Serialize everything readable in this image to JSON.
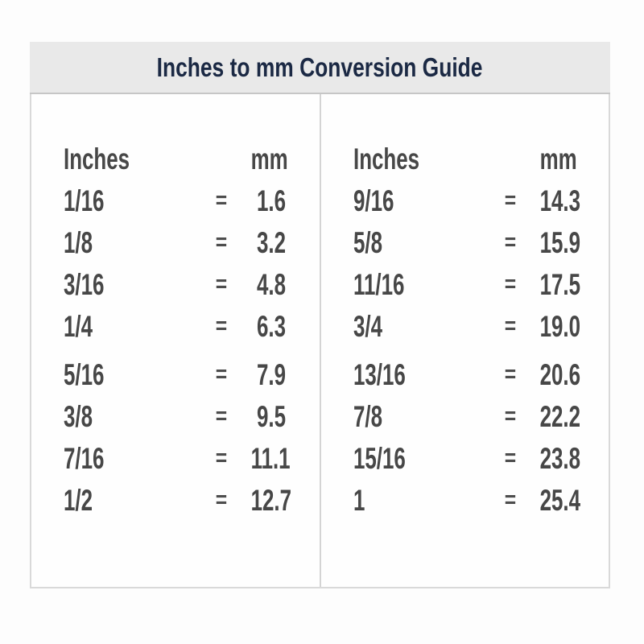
{
  "header": {
    "title": "Inches to mm Conversion Guide"
  },
  "columns": [
    {
      "inches_label": "Inches",
      "mm_label": "mm",
      "rows": [
        {
          "inches": "1/16",
          "eq": "=",
          "mm": "1.6"
        },
        {
          "inches": "1/8",
          "eq": "=",
          "mm": "3.2"
        },
        {
          "inches": "3/16",
          "eq": "=",
          "mm": "4.8"
        },
        {
          "inches": "1/4",
          "eq": "=",
          "mm": "6.3"
        },
        {
          "inches": "5/16",
          "eq": "=",
          "mm": "7.9"
        },
        {
          "inches": "3/8",
          "eq": "=",
          "mm": "9.5"
        },
        {
          "inches": "7/16",
          "eq": "=",
          "mm": "11.1"
        },
        {
          "inches": "1/2",
          "eq": "=",
          "mm": "12.7"
        }
      ]
    },
    {
      "inches_label": "Inches",
      "mm_label": "mm",
      "rows": [
        {
          "inches": "9/16",
          "eq": "=",
          "mm": "14.3"
        },
        {
          "inches": "5/8",
          "eq": "=",
          "mm": "15.9"
        },
        {
          "inches": "11/16",
          "eq": "=",
          "mm": "17.5"
        },
        {
          "inches": "3/4",
          "eq": "=",
          "mm": "19.0"
        },
        {
          "inches": "13/16",
          "eq": "=",
          "mm": "20.6"
        },
        {
          "inches": "7/8",
          "eq": "=",
          "mm": "22.2"
        },
        {
          "inches": "15/16",
          "eq": "=",
          "mm": "23.8"
        },
        {
          "inches": "1",
          "eq": "=",
          "mm": "25.4"
        }
      ]
    }
  ],
  "colors": {
    "header_bg": "#e9e9e9",
    "header_border": "#c6c6c6",
    "table_border": "#d9d9d9",
    "title_text": "#1b2944",
    "body_text": "#474747"
  },
  "chart_data": {
    "type": "table",
    "title": "Inches to mm Conversion Guide",
    "columns": [
      "Inches",
      "mm"
    ],
    "rows": [
      [
        "1/16",
        1.6
      ],
      [
        "1/8",
        3.2
      ],
      [
        "3/16",
        4.8
      ],
      [
        "1/4",
        6.3
      ],
      [
        "5/16",
        7.9
      ],
      [
        "3/8",
        9.5
      ],
      [
        "7/16",
        11.1
      ],
      [
        "1/2",
        12.7
      ],
      [
        "9/16",
        14.3
      ],
      [
        "5/8",
        15.9
      ],
      [
        "11/16",
        17.5
      ],
      [
        "3/4",
        19.0
      ],
      [
        "13/16",
        20.6
      ],
      [
        "7/8",
        22.2
      ],
      [
        "15/16",
        23.8
      ],
      [
        "1",
        25.4
      ]
    ],
    "layout": "two-column side-by-side, equals sign between columns"
  }
}
